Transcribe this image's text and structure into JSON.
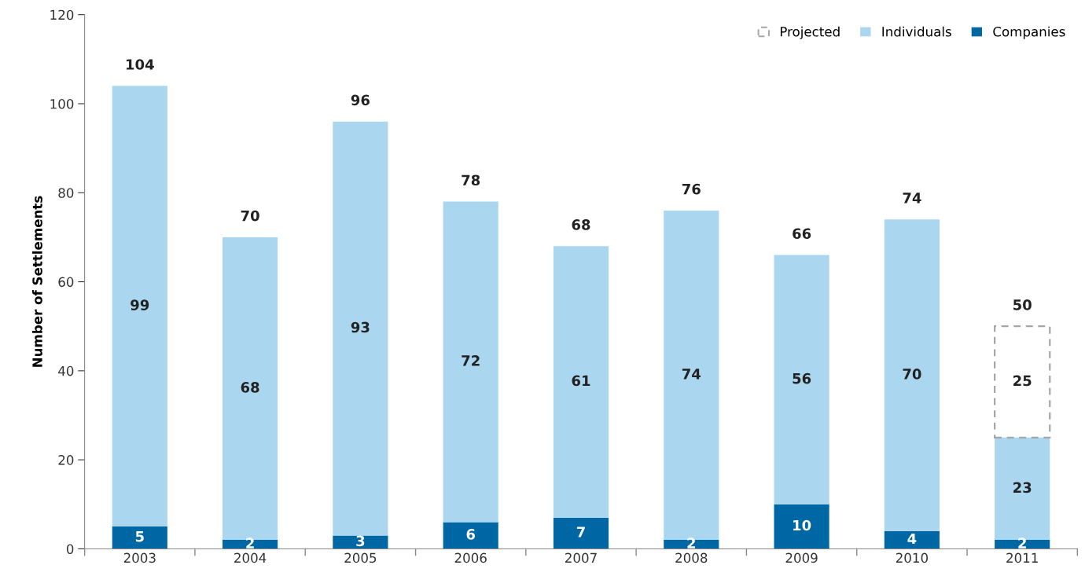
{
  "chart_data": {
    "type": "bar",
    "stacked": true,
    "ylabel": "Number of Settlements",
    "categories": [
      "2003",
      "2004",
      "2005",
      "2006",
      "2007",
      "2008",
      "2009",
      "2010",
      "2011"
    ],
    "series": [
      {
        "name": "Companies",
        "color": "#0067a5",
        "values": [
          5,
          2,
          3,
          6,
          7,
          2,
          10,
          4,
          2
        ]
      },
      {
        "name": "Individuals",
        "color": "#aad6f0",
        "values": [
          99,
          68,
          93,
          72,
          61,
          74,
          56,
          70,
          23
        ]
      },
      {
        "name": "Projected",
        "color": "#a6a6a6",
        "line_style": "dashed",
        "values": [
          null,
          null,
          null,
          null,
          null,
          null,
          null,
          null,
          25
        ]
      }
    ],
    "totals": [
      "104",
      "70",
      "96",
      "78",
      "68",
      "76",
      "66",
      "74",
      "50"
    ],
    "data_labels": true,
    "ylim": [
      0,
      120
    ],
    "yticks": [
      0,
      20,
      40,
      60,
      80,
      100,
      120
    ],
    "grid": false,
    "legend": "top right"
  }
}
